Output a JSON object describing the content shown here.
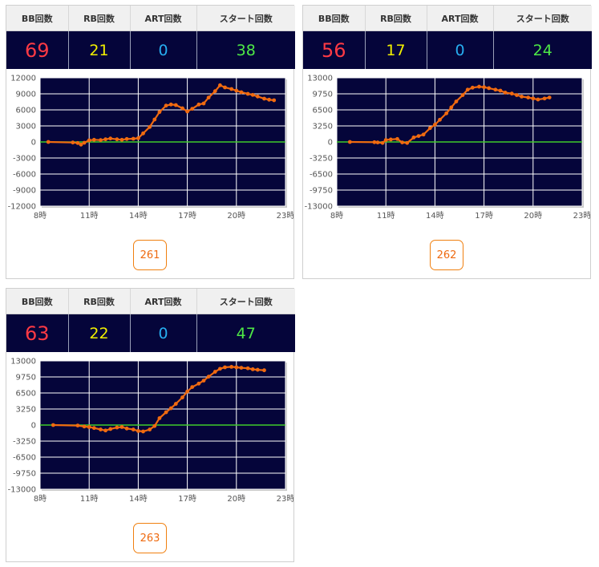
{
  "headers": {
    "bb": "BB回数",
    "rb": "RB回数",
    "art": "ART回数",
    "start": "スタート回数"
  },
  "colors": {
    "bb": "#ff3a44",
    "rb": "#f2f000",
    "art": "#27aef0",
    "start": "#4ee846",
    "plot_bg": "#05053a",
    "line": "#f06a10",
    "zero_line": "#3ecb2a",
    "button": "#ee6a10"
  },
  "machines": [
    {
      "number": "261",
      "stats": {
        "bb": "69",
        "rb": "21",
        "art": "0",
        "start": "38"
      },
      "chart_data": {
        "type": "line",
        "ylim": [
          -12000,
          12000
        ],
        "yticks": [
          12000,
          9000,
          6000,
          3000,
          0,
          -3000,
          -6000,
          -9000,
          -12000
        ],
        "xlim": [
          8,
          23
        ],
        "xticks": [
          8,
          11,
          14,
          17,
          20,
          23
        ],
        "xtick_suffix": "時",
        "x": [
          8.5,
          10,
          10.3,
          10.5,
          10.7,
          11,
          11.3,
          11.7,
          12,
          12.3,
          12.7,
          13,
          13.3,
          13.7,
          14,
          14.3,
          14.7,
          15,
          15.3,
          15.7,
          16,
          16.3,
          16.7,
          17,
          17.3,
          17.7,
          18,
          18.3,
          18.7,
          19,
          19.3,
          19.7,
          20,
          20.3,
          20.7,
          21,
          21.3,
          21.7,
          22,
          22.3
        ],
        "y": [
          0,
          -100,
          -200,
          -500,
          -150,
          300,
          400,
          350,
          500,
          650,
          500,
          400,
          550,
          600,
          700,
          1600,
          2800,
          4200,
          5600,
          6800,
          7000,
          6900,
          6300,
          5700,
          6200,
          7000,
          7200,
          8300,
          9500,
          10600,
          10200,
          9900,
          9600,
          9300,
          9000,
          8800,
          8500,
          8100,
          7900,
          7800
        ]
      }
    },
    {
      "number": "262",
      "stats": {
        "bb": "56",
        "rb": "17",
        "art": "0",
        "start": "24"
      },
      "chart_data": {
        "type": "line",
        "ylim": [
          -13000,
          13000
        ],
        "yticks": [
          13000,
          9750,
          6500,
          3250,
          0,
          -3250,
          -6500,
          -9750,
          -13000
        ],
        "xlim": [
          8,
          23
        ],
        "xticks": [
          8,
          11,
          14,
          17,
          20,
          23
        ],
        "xtick_suffix": "時",
        "x": [
          8.8,
          10.3,
          10.5,
          10.8,
          11,
          11.3,
          11.7,
          12,
          12.3,
          12.7,
          13,
          13.3,
          13.7,
          14,
          14.3,
          14.7,
          15,
          15.3,
          15.7,
          16,
          16.3,
          16.7,
          17,
          17.3,
          17.7,
          18,
          18.3,
          18.7,
          19,
          19.3,
          19.7,
          20,
          20.3,
          20.7,
          21
        ],
        "y": [
          0,
          -50,
          -100,
          -200,
          400,
          500,
          600,
          -100,
          -200,
          900,
          1200,
          1500,
          2800,
          3500,
          4500,
          5800,
          7000,
          8200,
          9500,
          10600,
          11000,
          11200,
          11100,
          10900,
          10600,
          10400,
          10000,
          9800,
          9500,
          9200,
          9000,
          8800,
          8600,
          8800,
          9000
        ]
      }
    },
    {
      "number": "263",
      "stats": {
        "bb": "63",
        "rb": "22",
        "art": "0",
        "start": "47"
      },
      "chart_data": {
        "type": "line",
        "ylim": [
          -13000,
          13000
        ],
        "yticks": [
          13000,
          9750,
          6500,
          3250,
          0,
          -3250,
          -6500,
          -9750,
          -13000
        ],
        "xlim": [
          8,
          23
        ],
        "xticks": [
          8,
          11,
          14,
          17,
          20,
          23
        ],
        "xtick_suffix": "時",
        "x": [
          8.8,
          10.3,
          10.7,
          11,
          11.3,
          11.7,
          12,
          12.3,
          12.7,
          13,
          13.3,
          13.7,
          14,
          14.3,
          14.7,
          15,
          15.3,
          15.7,
          16,
          16.3,
          16.7,
          17,
          17.3,
          17.7,
          18,
          18.3,
          18.7,
          19,
          19.3,
          19.7,
          20,
          20.3,
          20.7,
          21,
          21.3,
          21.7
        ],
        "y": [
          0,
          -100,
          -300,
          -400,
          -600,
          -900,
          -1100,
          -800,
          -500,
          -400,
          -700,
          -900,
          -1200,
          -1300,
          -900,
          -200,
          1400,
          2600,
          3400,
          4300,
          5600,
          6800,
          7700,
          8400,
          9000,
          9800,
          10800,
          11400,
          11700,
          11800,
          11700,
          11600,
          11500,
          11300,
          11200,
          11100
        ]
      }
    }
  ]
}
